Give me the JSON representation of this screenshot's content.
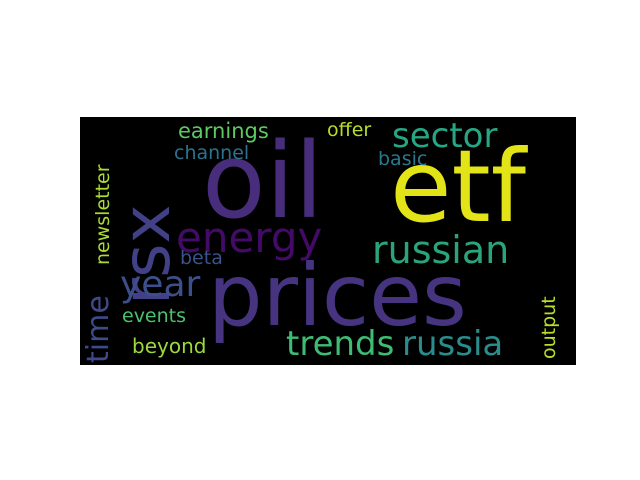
{
  "word_cloud": {
    "background": "#000000",
    "words": [
      {
        "key": "oil",
        "text": "oil",
        "color": "#472d7b"
      },
      {
        "key": "etf",
        "text": "etf",
        "color": "#e3e418"
      },
      {
        "key": "prices",
        "text": "prices",
        "color": "#463480"
      },
      {
        "key": "rsx",
        "text": "rsx",
        "color": "#424086"
      },
      {
        "key": "energy",
        "text": "energy",
        "color": "#440a68"
      },
      {
        "key": "russian",
        "text": "russian",
        "color": "#2ba47a"
      },
      {
        "key": "sector",
        "text": "sector",
        "color": "#26a784"
      },
      {
        "key": "russia",
        "text": "russia",
        "color": "#2a8c8b"
      },
      {
        "key": "trends",
        "text": "trends",
        "color": "#3fbc73"
      },
      {
        "key": "year",
        "text": "year",
        "color": "#3c4f8a"
      },
      {
        "key": "time",
        "text": "time",
        "color": "#3e4a89"
      },
      {
        "key": "newsletter",
        "text": "newsletter",
        "color": "#a8db34"
      },
      {
        "key": "earnings",
        "text": "earnings",
        "color": "#5ec962"
      },
      {
        "key": "offer",
        "text": "offer",
        "color": "#b5de2b"
      },
      {
        "key": "channel",
        "text": "channel",
        "color": "#2c728e"
      },
      {
        "key": "basic",
        "text": "basic",
        "color": "#2a788e"
      },
      {
        "key": "beta",
        "text": "beta",
        "color": "#3b528b"
      },
      {
        "key": "events",
        "text": "events",
        "color": "#4ac16d"
      },
      {
        "key": "beyond",
        "text": "beyond",
        "color": "#9bd93c"
      },
      {
        "key": "output",
        "text": "output",
        "color": "#b8de29"
      }
    ]
  }
}
